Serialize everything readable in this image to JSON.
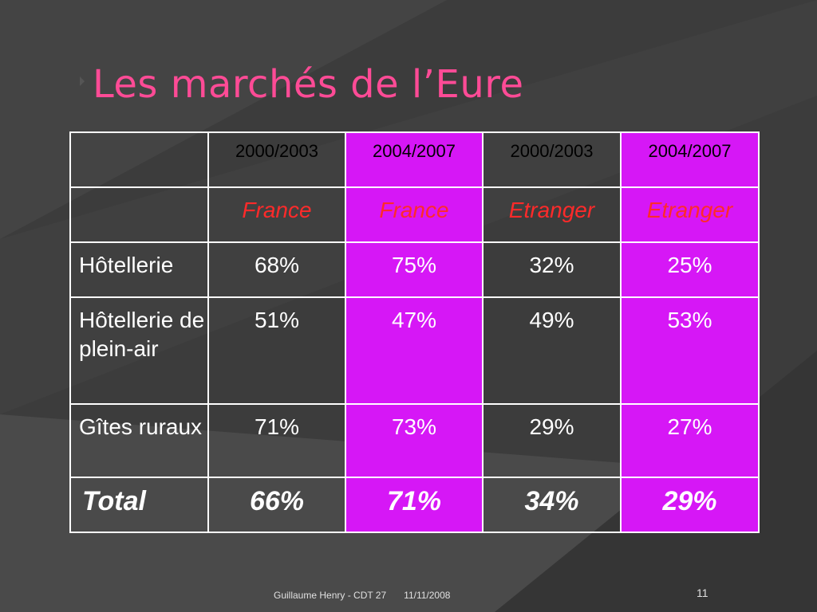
{
  "slide": {
    "title": "Les marchés de l’Eure",
    "footer_text": "Guillaume Henry - CDT 27",
    "footer_date": "11/11/2008",
    "page_number": "11"
  },
  "colors": {
    "background": "#3c3c3c",
    "title": "#ff4b96",
    "highlight_column": "#d617f6",
    "subheader_text": "#ff2a2a"
  },
  "table": {
    "headers": [
      "",
      "2000/2003",
      "2004/2007",
      "2000/2003",
      "2004/2007"
    ],
    "subheaders": [
      "",
      "France",
      "France",
      "Etranger",
      "Etranger"
    ],
    "rows": [
      [
        "Hôtellerie",
        "68%",
        "75%",
        "32%",
        "25%"
      ],
      [
        "Hôtellerie de plein-air",
        "51%",
        "47%",
        "49%",
        "53%"
      ],
      [
        "Gîtes ruraux",
        "71%",
        "73%",
        "29%",
        "27%"
      ]
    ],
    "total": [
      "Total",
      "66%",
      "71%",
      "34%",
      "29%"
    ]
  }
}
